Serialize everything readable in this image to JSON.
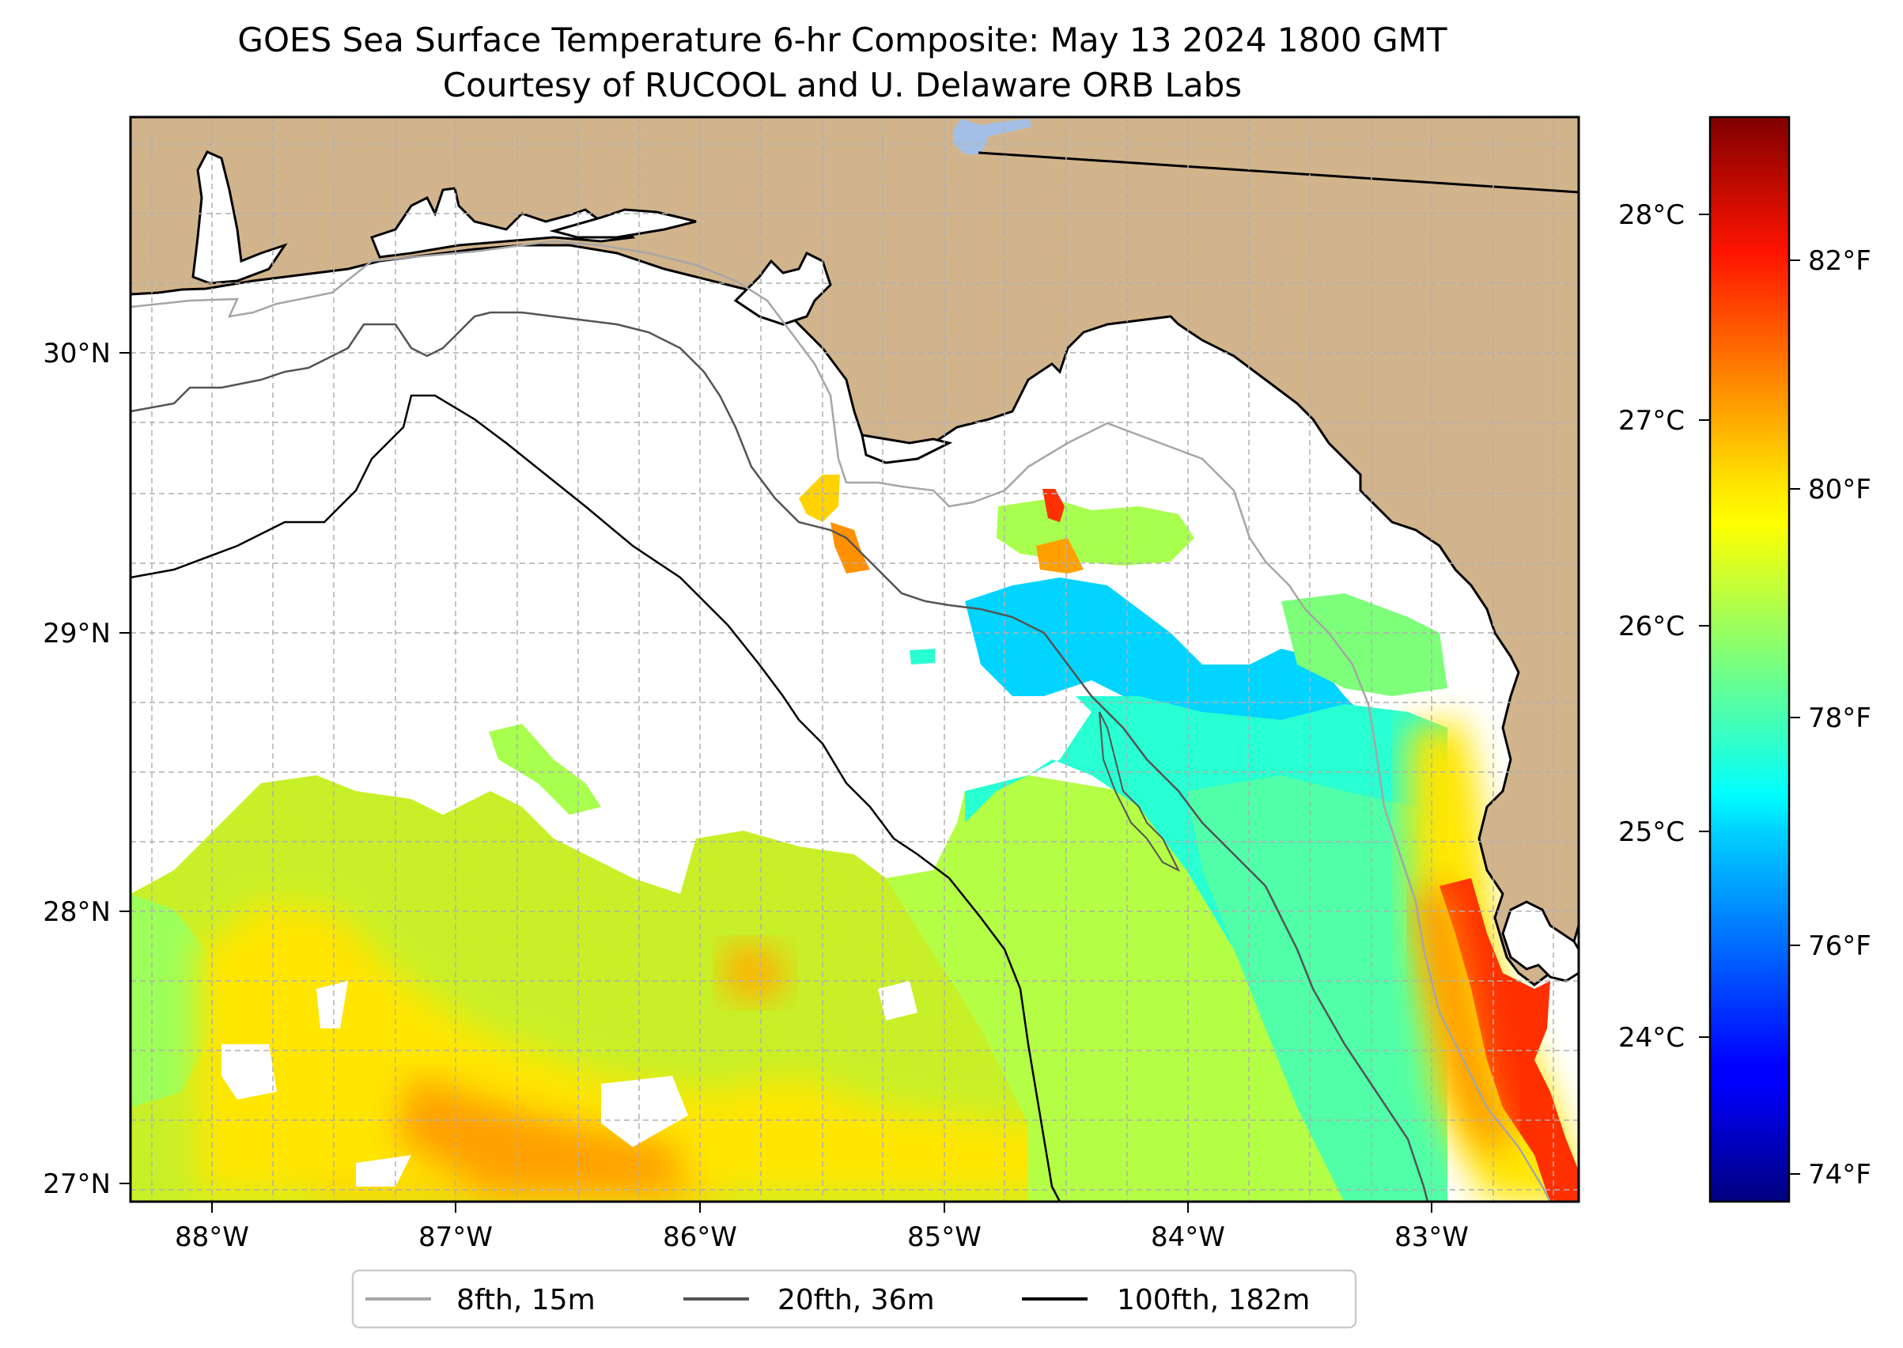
{
  "title": "GOES Sea Surface Temperature 6-hr Composite: May 13 2024 1800 GMT",
  "subtitle": "Courtesy of RUCOOL and U. Delaware ORB Labs",
  "map": {
    "lon_range": [
      -88.33,
      -82.42
    ],
    "lat_range": [
      26.94,
      30.84
    ],
    "lon_labels": [
      "88°W",
      "87°W",
      "86°W",
      "85°W",
      "84°W",
      "83°W"
    ],
    "lat_labels": [
      "27°N",
      "28°N",
      "29°N",
      "30°N"
    ],
    "gridlines": true,
    "land_color": "#d2b48c",
    "lake_color": "#a4bfe5",
    "no_data_color": "#ffffff"
  },
  "colorbar": {
    "colormap": "jet",
    "range_f": [
      73.6,
      83.4
    ],
    "celsius_labels": [
      "24°C",
      "25°C",
      "26°C",
      "27°C",
      "28°C"
    ],
    "fahrenheit_labels": [
      "74°F",
      "76°F",
      "78°F",
      "80°F",
      "82°F"
    ]
  },
  "legend": {
    "items": [
      {
        "label": "8fth, 15m",
        "color": "#a6a6a6"
      },
      {
        "label": "20fth, 36m",
        "color": "#545454"
      },
      {
        "label": "100fth, 182m",
        "color": "#000000"
      }
    ]
  },
  "sst_regions_f": [
    {
      "zone": "southwest",
      "value": 80.0
    },
    {
      "zone": "south",
      "value": 80.6
    },
    {
      "zone": "central",
      "value": 79.2
    },
    {
      "zone": "big-bend-offshore",
      "value": 77.2
    },
    {
      "zone": "east-shelf",
      "value": 78.2
    },
    {
      "zone": "tampa-coast",
      "value": 81.8
    }
  ]
}
